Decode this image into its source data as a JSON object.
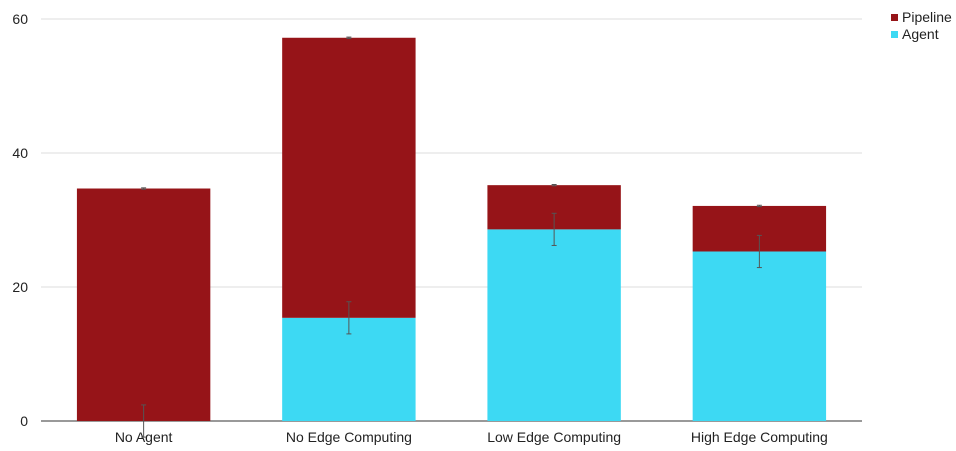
{
  "chart_data": {
    "type": "bar",
    "stacked": true,
    "title": "",
    "xlabel": "",
    "ylabel": "",
    "ylim": [
      0,
      60
    ],
    "yticks": [
      0,
      20,
      40,
      60
    ],
    "grid": true,
    "legend_position": "top-right",
    "categories": [
      "No Agent",
      "No Edge Computing",
      "Low Edge Computing",
      "High Edge Computing"
    ],
    "series": [
      {
        "name": "Agent",
        "color": "#3DD9F3",
        "values": [
          0,
          15.4,
          28.6,
          25.3
        ],
        "error": [
          2.4,
          2.4,
          2.4,
          2.4
        ]
      },
      {
        "name": "Pipeline",
        "color": "#961418",
        "values": [
          34.7,
          41.8,
          6.6,
          6.8
        ],
        "error": [
          0.1,
          0.1,
          0.1,
          0.1
        ]
      }
    ],
    "legend_order": [
      "Pipeline",
      "Agent"
    ]
  }
}
